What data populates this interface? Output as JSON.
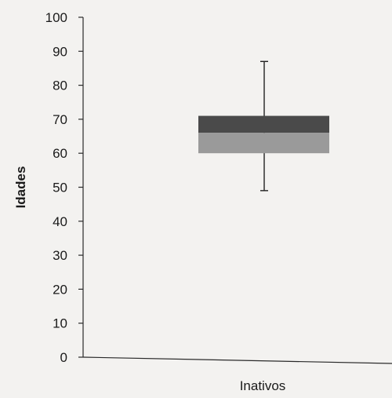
{
  "chart_data": {
    "type": "box",
    "title": "",
    "xlabel": "",
    "ylabel": "Idades",
    "ylim": [
      0,
      100
    ],
    "yticks": [
      0,
      10,
      20,
      30,
      40,
      50,
      60,
      70,
      80,
      90,
      100
    ],
    "grid": false,
    "categories": [
      "Inativos"
    ],
    "boxes": [
      {
        "category": "Inativos",
        "min": 49,
        "q1": 60,
        "median": 66,
        "q3": 71,
        "max": 87
      }
    ],
    "colors": {
      "background": "#f3f2f0",
      "axis": "#2a2a2a",
      "upper_box": "#4a4a4a",
      "lower_box": "#9a9a9a",
      "whisker": "#222222"
    }
  }
}
